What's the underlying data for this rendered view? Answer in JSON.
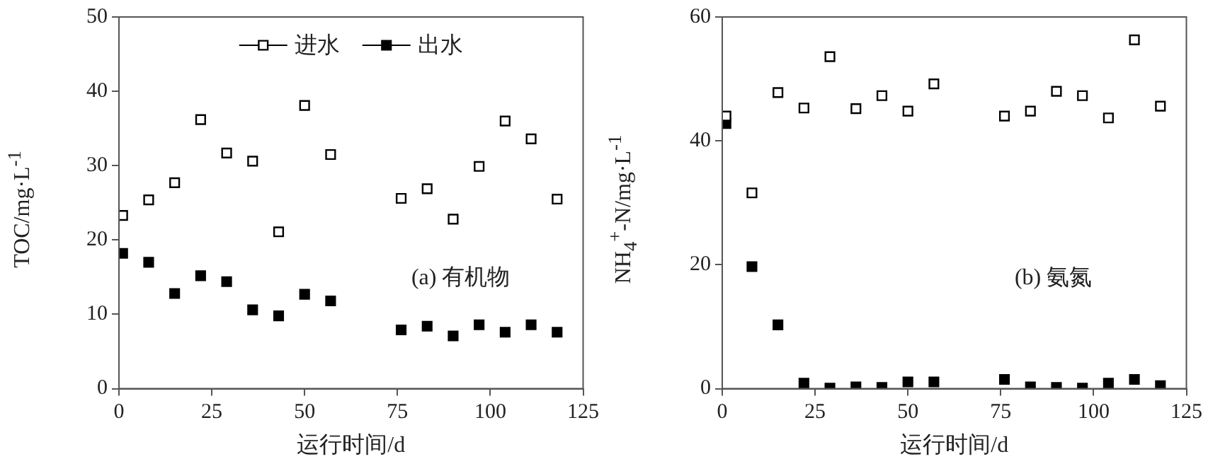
{
  "chart_data": [
    {
      "type": "scatter",
      "xlabel": "运行时间/d",
      "ylabel": "TOC/mg·L$^{-1}$",
      "annotations": [
        "(a) 有机物"
      ],
      "xlim": [
        0,
        125
      ],
      "xticks": [
        0,
        25,
        50,
        75,
        100,
        125
      ],
      "ylim": [
        0,
        50
      ],
      "yticks": [
        0,
        10,
        20,
        30,
        40,
        50
      ],
      "grid": false,
      "legend": "top",
      "marker": "square",
      "x": [
        1,
        8,
        15,
        22,
        29,
        36,
        43,
        50,
        57,
        76,
        83,
        90,
        97,
        104,
        111,
        118
      ],
      "series": [
        {
          "name": "进水",
          "color": "#000000",
          "values": [
            23.3,
            25.4,
            27.7,
            36.2,
            31.7,
            30.6,
            21.1,
            38.1,
            31.5,
            25.6,
            26.9,
            22.8,
            29.9,
            36.0,
            33.6,
            25.5
          ]
        },
        {
          "name": "出水",
          "color": "#000000",
          "values": [
            18.2,
            17.0,
            12.8,
            15.2,
            14.4,
            10.6,
            9.8,
            12.7,
            11.8,
            7.9,
            8.4,
            7.1,
            8.6,
            7.6,
            8.6,
            7.6
          ]
        }
      ]
    },
    {
      "type": "scatter",
      "xlabel": "运行时间/d",
      "ylabel": "NH$_{4}$$^{+}$-N/mg·L$^{-1}$",
      "annotations": [
        "(b) 氨氮"
      ],
      "xlim": [
        0,
        125
      ],
      "xticks": [
        0,
        25,
        50,
        75,
        100,
        125
      ],
      "ylim": [
        0,
        60
      ],
      "yticks": [
        0,
        20,
        40,
        60
      ],
      "grid": false,
      "marker": "square",
      "x": [
        1,
        8,
        15,
        22,
        29,
        36,
        43,
        50,
        57,
        76,
        83,
        90,
        97,
        104,
        111,
        118
      ],
      "series": [
        {
          "color": "#000000",
          "values": [
            44.0,
            31.6,
            47.8,
            45.3,
            53.6,
            45.2,
            47.3,
            44.8,
            49.2,
            44.0,
            44.8,
            48.0,
            47.3,
            43.7,
            56.3,
            45.6
          ]
        },
        {
          "color": "#000000",
          "values": [
            42.8,
            19.7,
            10.3,
            0.9,
            0.1,
            0.3,
            0.2,
            1.1,
            1.1,
            1.5,
            0.3,
            0.2,
            0.1,
            0.9,
            1.5,
            0.5
          ]
        }
      ]
    }
  ]
}
